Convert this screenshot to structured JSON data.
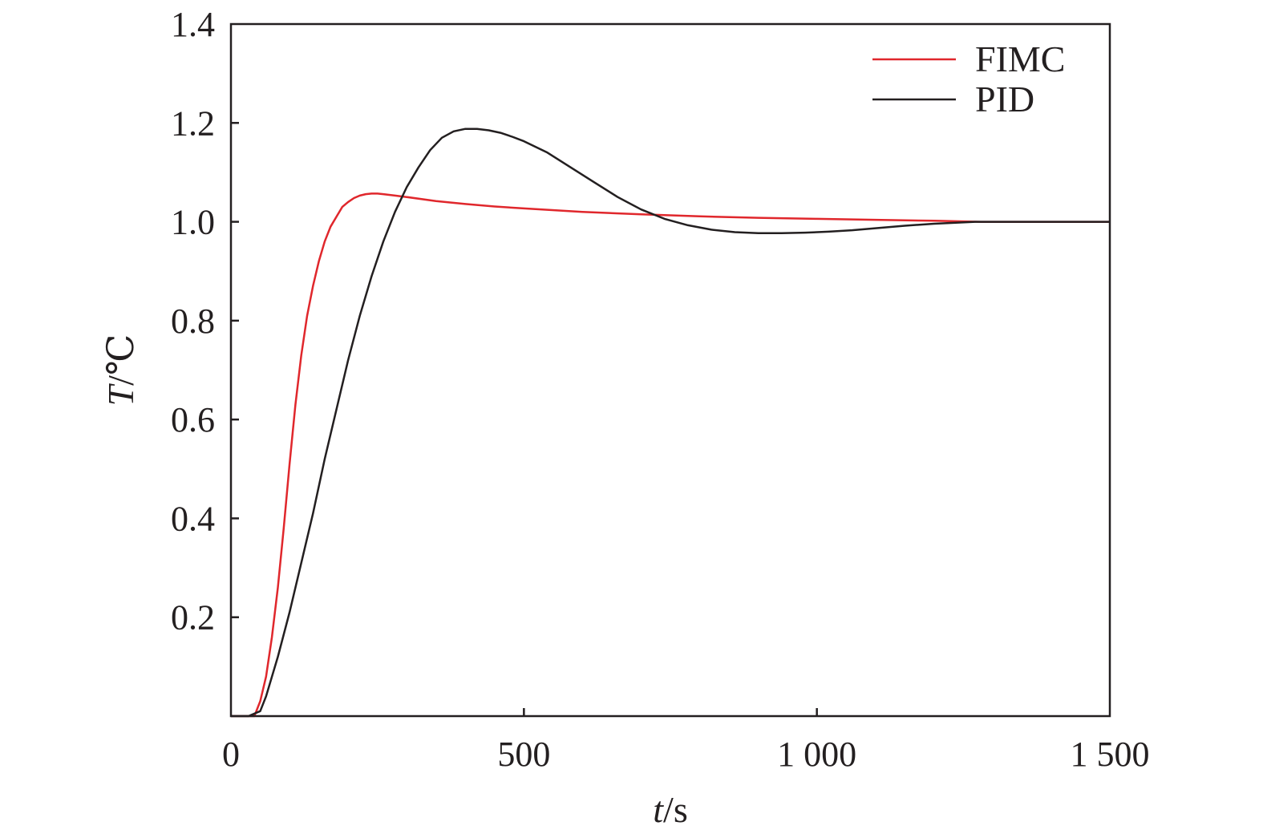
{
  "chart_data": {
    "type": "line",
    "xlabel": {
      "var": "t",
      "unit": "/s"
    },
    "ylabel": {
      "var": "T",
      "unit": "/℃"
    },
    "xlim": [
      0,
      1500
    ],
    "ylim": [
      0,
      1.4
    ],
    "x_ticks": [
      {
        "value": 0,
        "label": "0"
      },
      {
        "value": 500,
        "label": "500"
      },
      {
        "value": 1000,
        "label": "1 000"
      },
      {
        "value": 1500,
        "label": "1 500"
      }
    ],
    "y_ticks": [
      {
        "value": 0.2,
        "label": "0.2"
      },
      {
        "value": 0.4,
        "label": "0.4"
      },
      {
        "value": 0.6,
        "label": "0.6"
      },
      {
        "value": 0.8,
        "label": "0.8"
      },
      {
        "value": 1.0,
        "label": "1.0"
      },
      {
        "value": 1.2,
        "label": "1.2"
      },
      {
        "value": 1.4,
        "label": "1.4"
      }
    ],
    "grid": false,
    "legend_position": "top-right",
    "series": [
      {
        "name": "FIMC",
        "color": "#e0272c",
        "x": [
          0,
          40,
          50,
          60,
          70,
          80,
          90,
          100,
          110,
          120,
          130,
          140,
          150,
          160,
          170,
          180,
          190,
          200,
          210,
          220,
          230,
          240,
          250,
          260,
          280,
          300,
          350,
          400,
          450,
          500,
          600,
          700,
          800,
          900,
          1000,
          1100,
          1200,
          1280,
          1500
        ],
        "y": [
          0,
          0,
          0.03,
          0.08,
          0.16,
          0.26,
          0.38,
          0.51,
          0.63,
          0.73,
          0.81,
          0.87,
          0.92,
          0.96,
          0.99,
          1.01,
          1.03,
          1.04,
          1.048,
          1.053,
          1.056,
          1.057,
          1.057,
          1.056,
          1.053,
          1.05,
          1.042,
          1.036,
          1.031,
          1.027,
          1.02,
          1.015,
          1.011,
          1.008,
          1.006,
          1.004,
          1.002,
          1.0,
          1.0
        ]
      },
      {
        "name": "PID",
        "color": "#231f20",
        "x": [
          0,
          30,
          50,
          60,
          80,
          100,
          120,
          140,
          160,
          180,
          200,
          220,
          240,
          260,
          280,
          300,
          320,
          340,
          360,
          380,
          400,
          420,
          440,
          460,
          480,
          500,
          540,
          580,
          620,
          660,
          700,
          740,
          780,
          820,
          860,
          900,
          940,
          980,
          1020,
          1060,
          1100,
          1150,
          1200,
          1270,
          1500
        ],
        "y": [
          0,
          0,
          0.01,
          0.04,
          0.12,
          0.21,
          0.31,
          0.41,
          0.52,
          0.62,
          0.72,
          0.81,
          0.89,
          0.96,
          1.02,
          1.07,
          1.11,
          1.145,
          1.17,
          1.183,
          1.188,
          1.188,
          1.185,
          1.18,
          1.172,
          1.163,
          1.14,
          1.11,
          1.08,
          1.05,
          1.025,
          1.006,
          0.993,
          0.984,
          0.979,
          0.977,
          0.977,
          0.978,
          0.98,
          0.983,
          0.987,
          0.992,
          0.996,
          1.0,
          1.0
        ]
      }
    ]
  }
}
